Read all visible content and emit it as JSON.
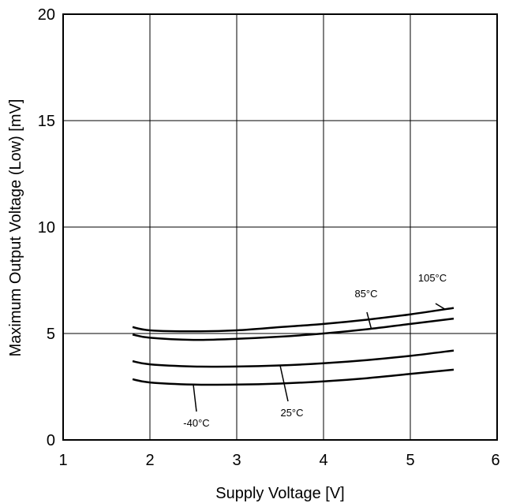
{
  "chart_data": {
    "type": "line",
    "xlabel": "Supply Voltage [V]",
    "ylabel": "Maximum Output Voltage (Low) [mV]",
    "xlim": [
      1,
      6
    ],
    "ylim": [
      0,
      20
    ],
    "xticks": [
      1,
      2,
      3,
      4,
      5,
      6
    ],
    "yticks": [
      0,
      5,
      10,
      15,
      20
    ],
    "grid": true,
    "series": [
      {
        "name": "105°C",
        "x": [
          1.8,
          2.0,
          2.5,
          3.0,
          3.5,
          4.0,
          4.5,
          5.0,
          5.5
        ],
        "y": [
          5.3,
          5.15,
          5.1,
          5.15,
          5.3,
          5.45,
          5.65,
          5.9,
          6.2
        ]
      },
      {
        "name": "85°C",
        "x": [
          1.8,
          2.0,
          2.5,
          3.0,
          3.5,
          4.0,
          4.5,
          5.0,
          5.5
        ],
        "y": [
          4.95,
          4.8,
          4.7,
          4.75,
          4.85,
          5.0,
          5.2,
          5.45,
          5.7
        ]
      },
      {
        "name": "25°C",
        "x": [
          1.8,
          2.0,
          2.5,
          3.0,
          3.5,
          4.0,
          4.5,
          5.0,
          5.5
        ],
        "y": [
          3.7,
          3.55,
          3.45,
          3.45,
          3.5,
          3.6,
          3.75,
          3.95,
          4.2
        ]
      },
      {
        "name": "-40°C",
        "x": [
          1.8,
          2.0,
          2.5,
          3.0,
          3.5,
          4.0,
          4.5,
          5.0,
          5.5
        ],
        "y": [
          2.85,
          2.7,
          2.6,
          2.6,
          2.65,
          2.75,
          2.9,
          3.1,
          3.3
        ]
      }
    ]
  }
}
